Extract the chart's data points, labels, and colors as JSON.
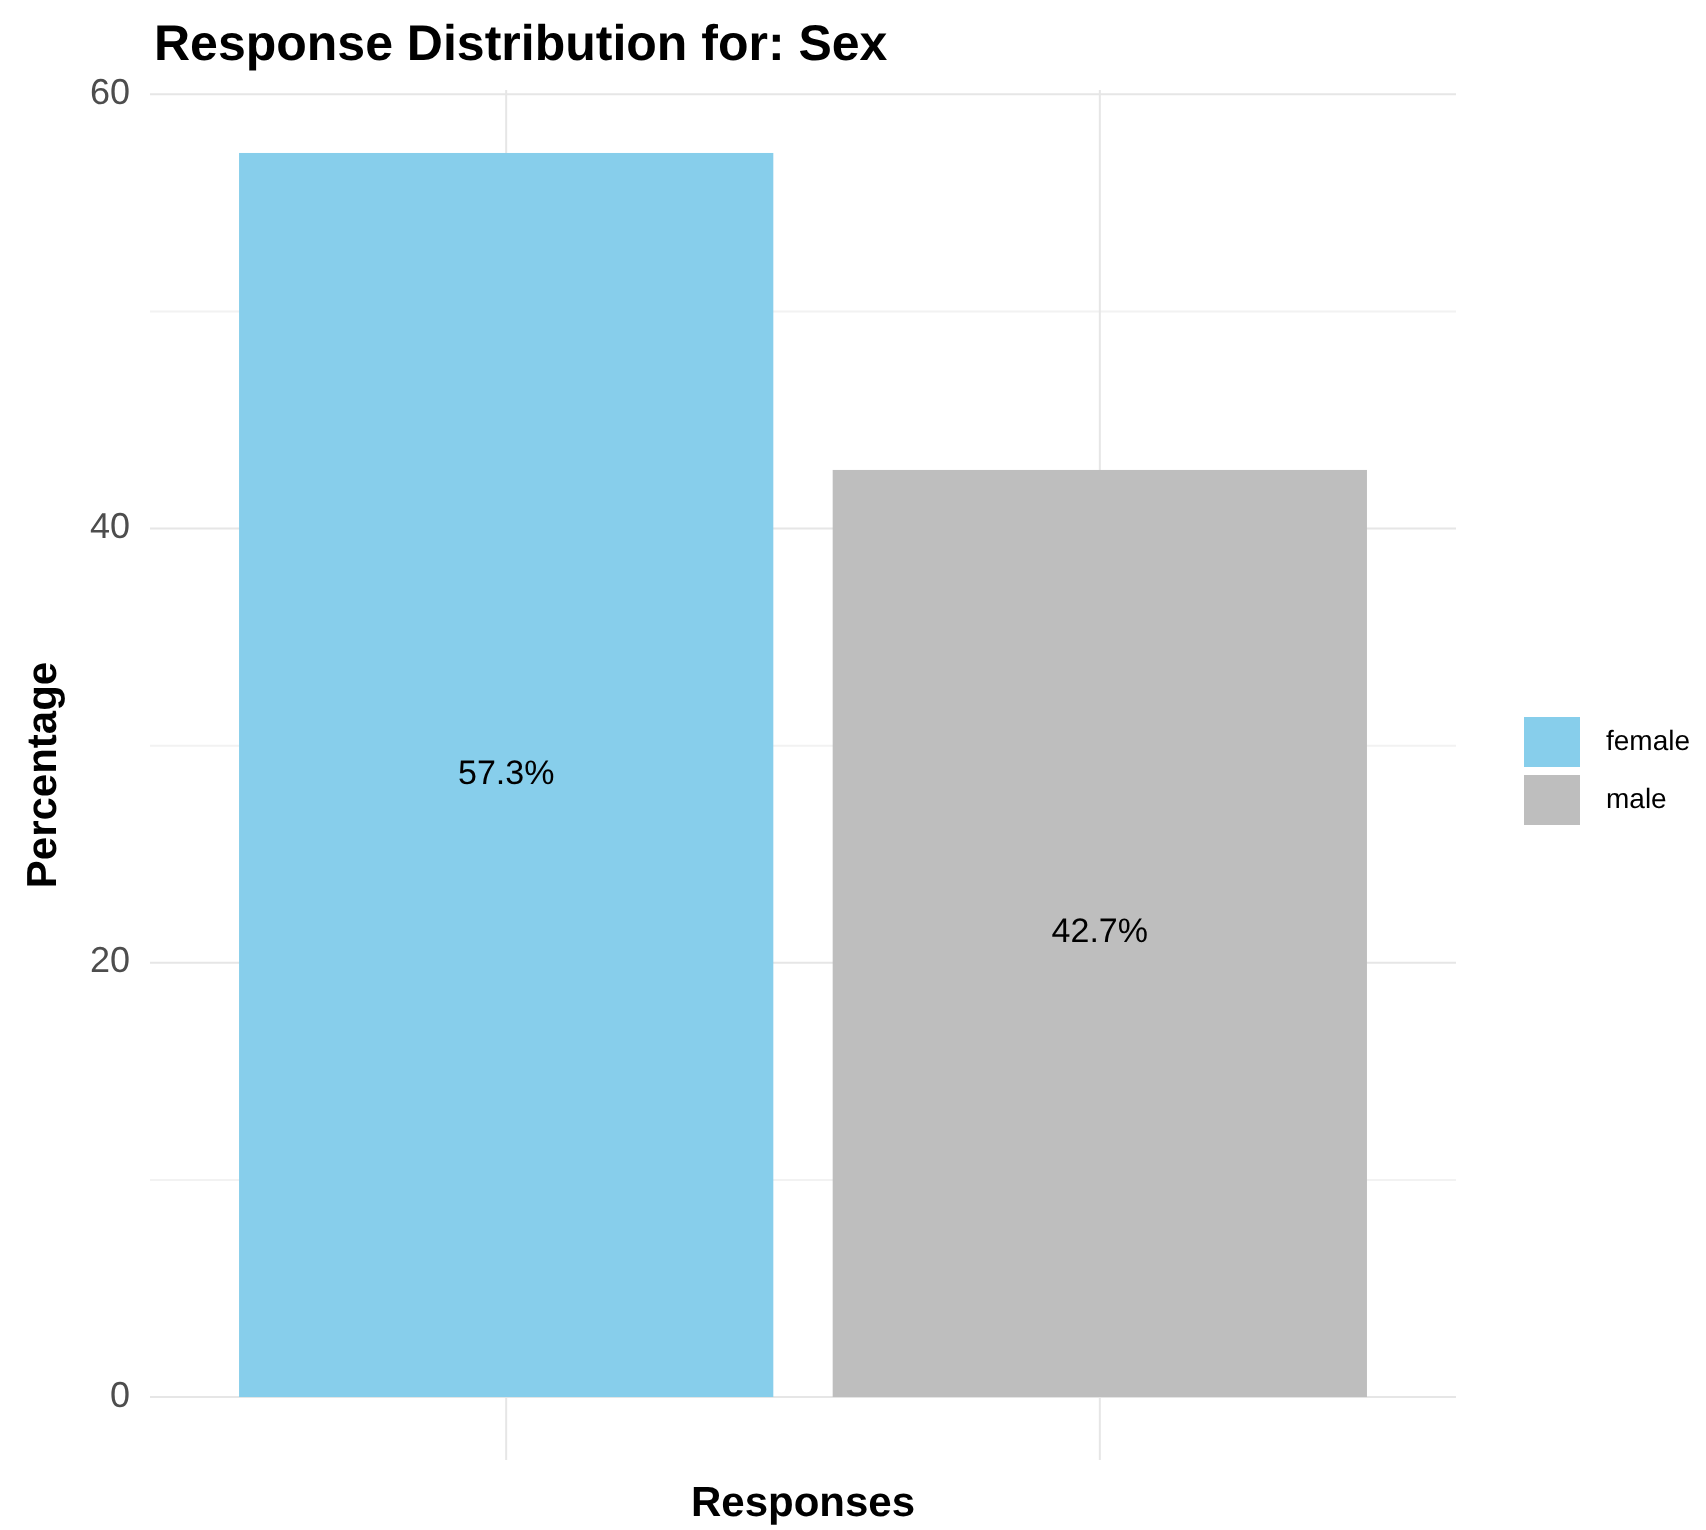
{
  "chart_data": {
    "type": "bar",
    "title": "Response Distribution for: Sex",
    "xlabel": "Responses",
    "ylabel": "Percentage",
    "categories": [
      null,
      null
    ],
    "series": [
      {
        "name": "female",
        "color": "#87ceeb",
        "values": [
          57.3,
          null
        ],
        "value_labels": [
          "57.3%",
          null
        ]
      },
      {
        "name": "male",
        "color": "#bebebe",
        "values": [
          null,
          42.7
        ],
        "value_labels": [
          null,
          "42.7%"
        ]
      }
    ],
    "ylim": [
      -2.9,
      60.2
    ],
    "yticks": [
      0,
      {
        "value": 10,
        "label": null
      },
      20,
      {
        "value": 30,
        "label": null
      },
      40,
      {
        "value": 50,
        "label": null
      },
      60
    ],
    "grid": true,
    "legend": "right"
  }
}
